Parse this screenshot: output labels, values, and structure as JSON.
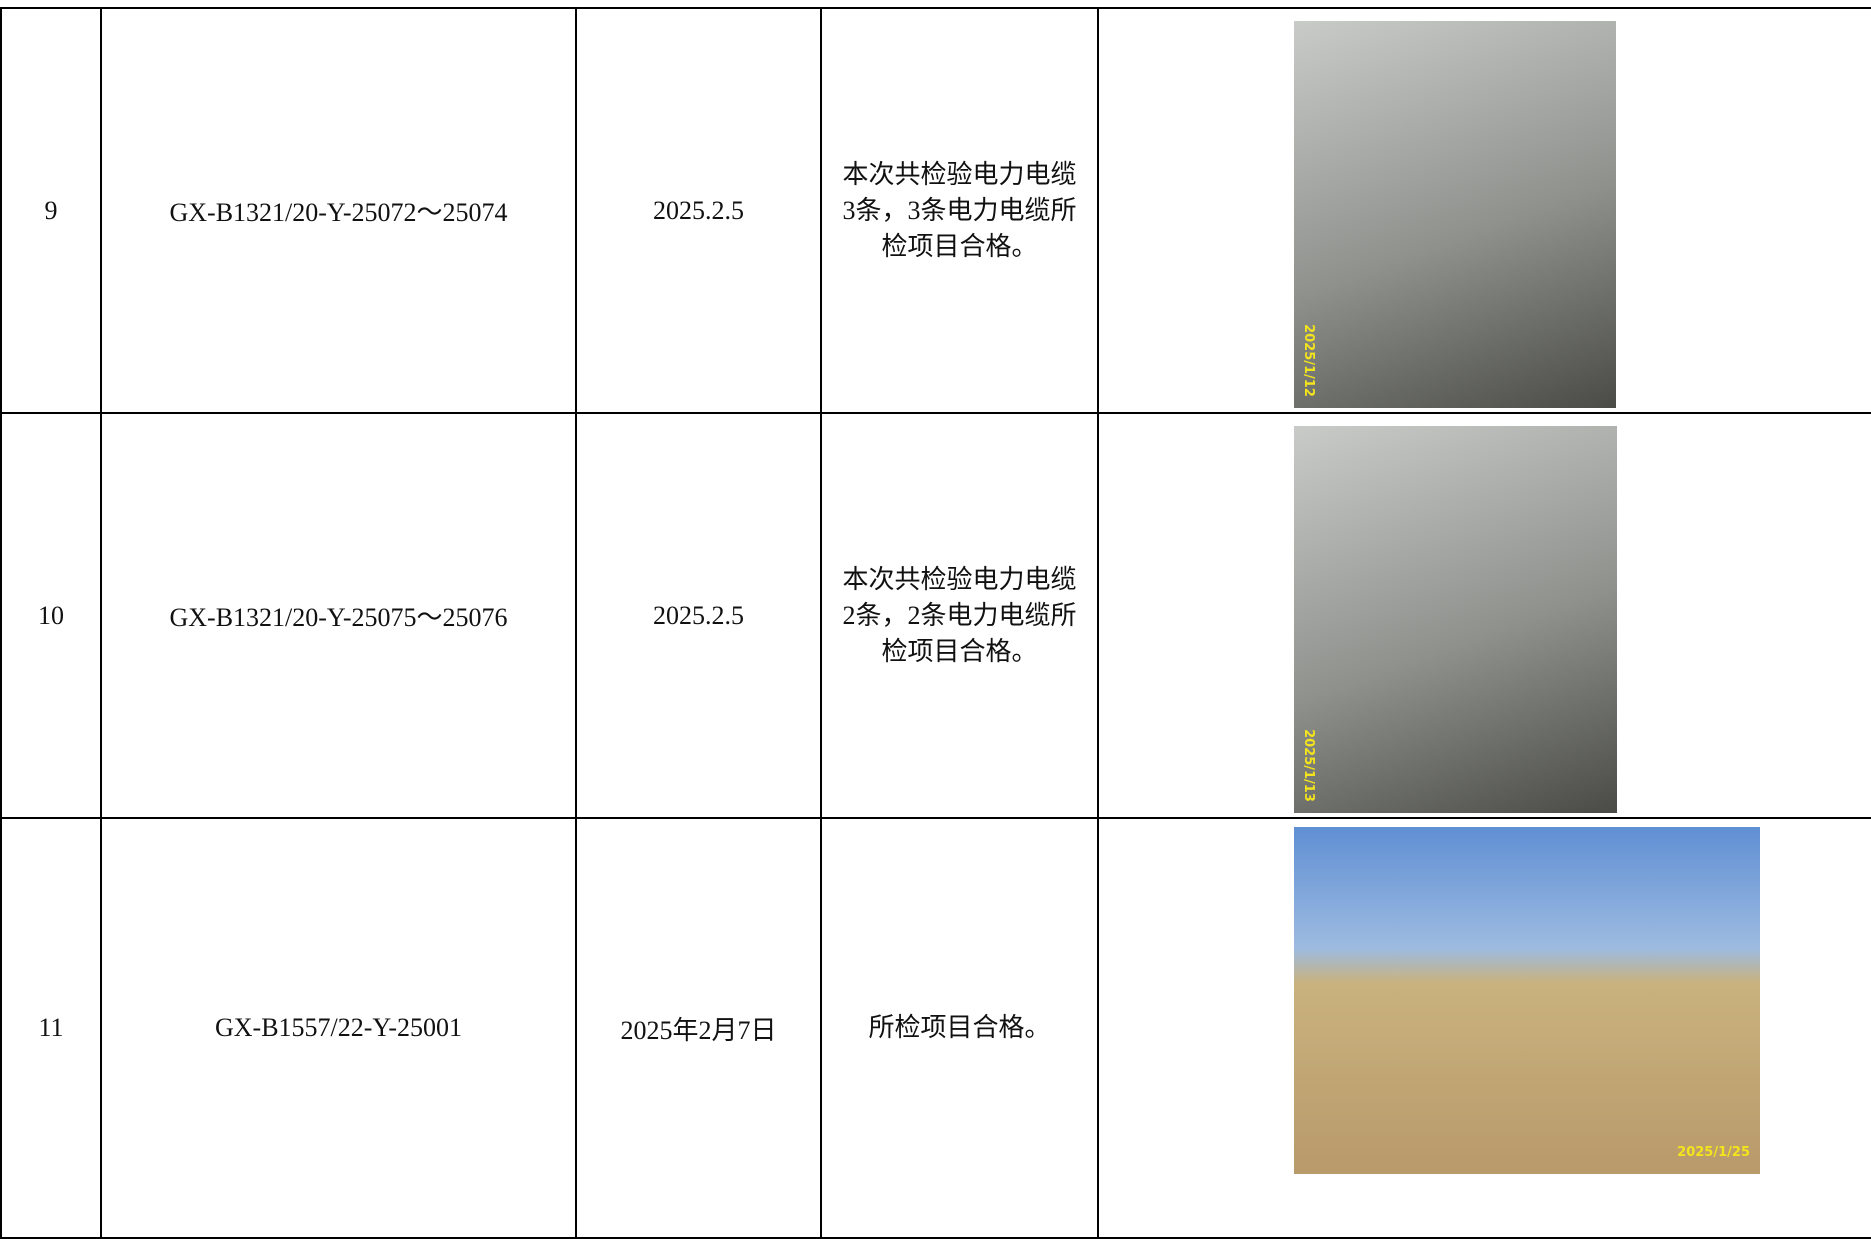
{
  "table": {
    "rows": [
      [
        "9",
        "GX-B1321/20-Y-25072～25074",
        "2025.2.5",
        "本次共检验电力电缆3条，3条电力电缆所检项目合格。",
        "2025/1/12"
      ],
      [
        "10",
        "GX-B1321/20-Y-25075～25076",
        "2025.2.5",
        "本次共检验电力电缆2条，2条电力电缆所检项目合格。",
        "2025/1/13"
      ],
      [
        "11",
        "GX-B1557/22-Y-25001",
        "2025年2月7日",
        "所检项目合格。",
        "2025/1/25"
      ]
    ]
  }
}
